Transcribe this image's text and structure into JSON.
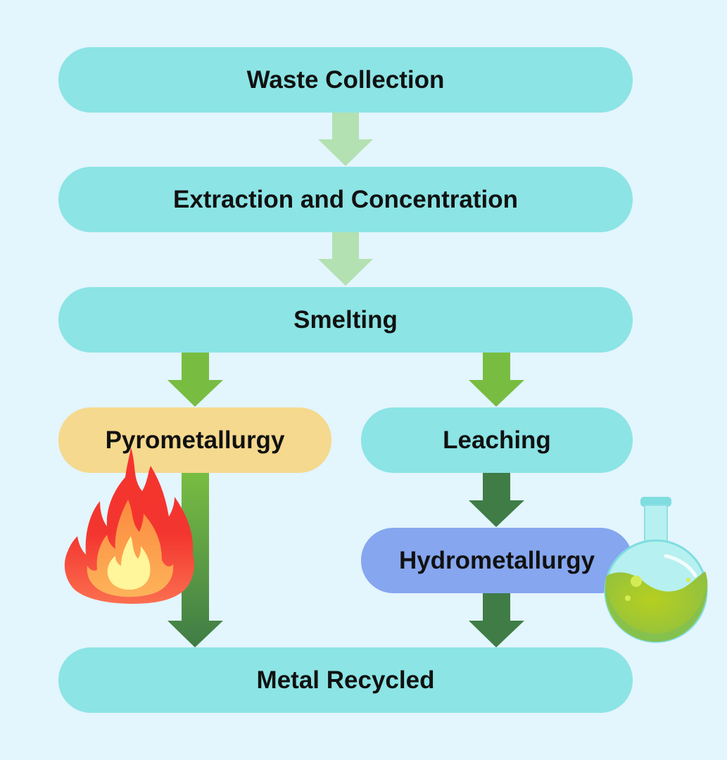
{
  "nodes": {
    "waste_collection": "Waste Collection",
    "extraction": "Extraction and Concentration",
    "smelting": "Smelting",
    "pyrometallurgy": "Pyrometallurgy",
    "leaching": "Leaching",
    "hydrometallurgy": "Hydrometallurgy",
    "metal_recycled": "Metal Recycled"
  },
  "icons": {
    "fire": "fire-icon",
    "flask": "flask-icon"
  },
  "colors": {
    "background": "#e3f5fd",
    "node_teal": "#8ce4e5",
    "node_sand": "#f5d98e",
    "node_blue": "#86a6ef",
    "arrow_light": "#b3e1b1",
    "arrow_mid": "#78bd42",
    "arrow_dark": "#3f7c46"
  }
}
